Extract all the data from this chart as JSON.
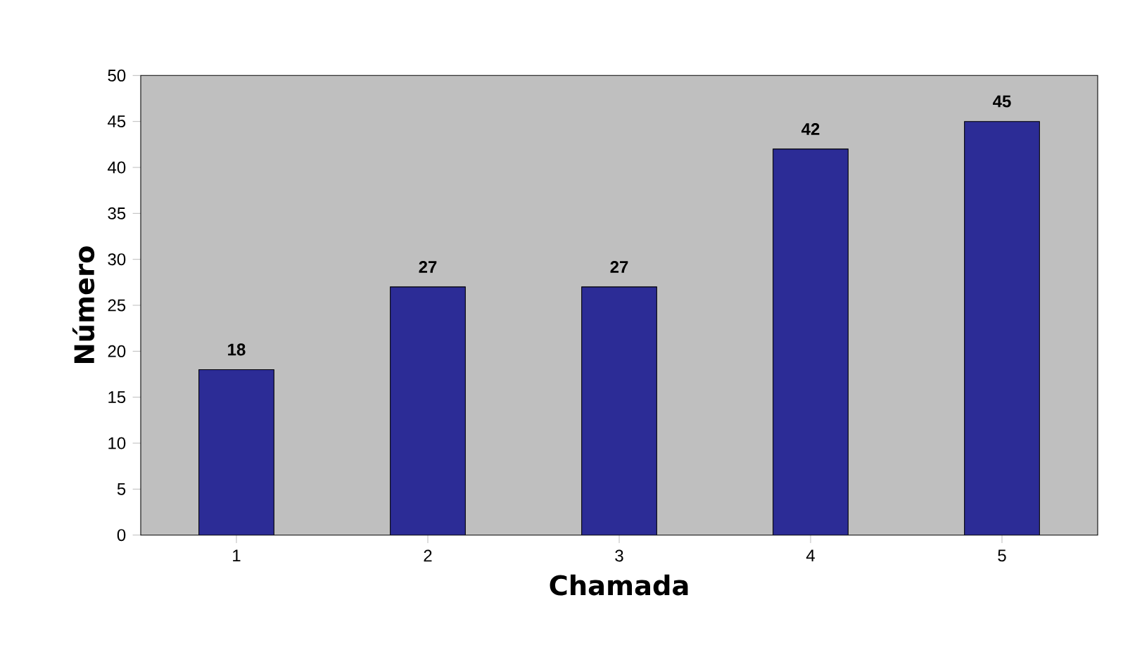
{
  "chart_data": {
    "type": "bar",
    "xlabel": "Chamada",
    "ylabel": "Número",
    "categories": [
      "1",
      "2",
      "3",
      "4",
      "5"
    ],
    "values": [
      18,
      27,
      27,
      42,
      45
    ],
    "color": "#2c2c96",
    "ylim": [
      0,
      50
    ],
    "yticks": [
      0,
      5,
      10,
      15,
      20,
      25,
      30,
      35,
      40,
      45,
      50
    ],
    "data_labels": true
  }
}
